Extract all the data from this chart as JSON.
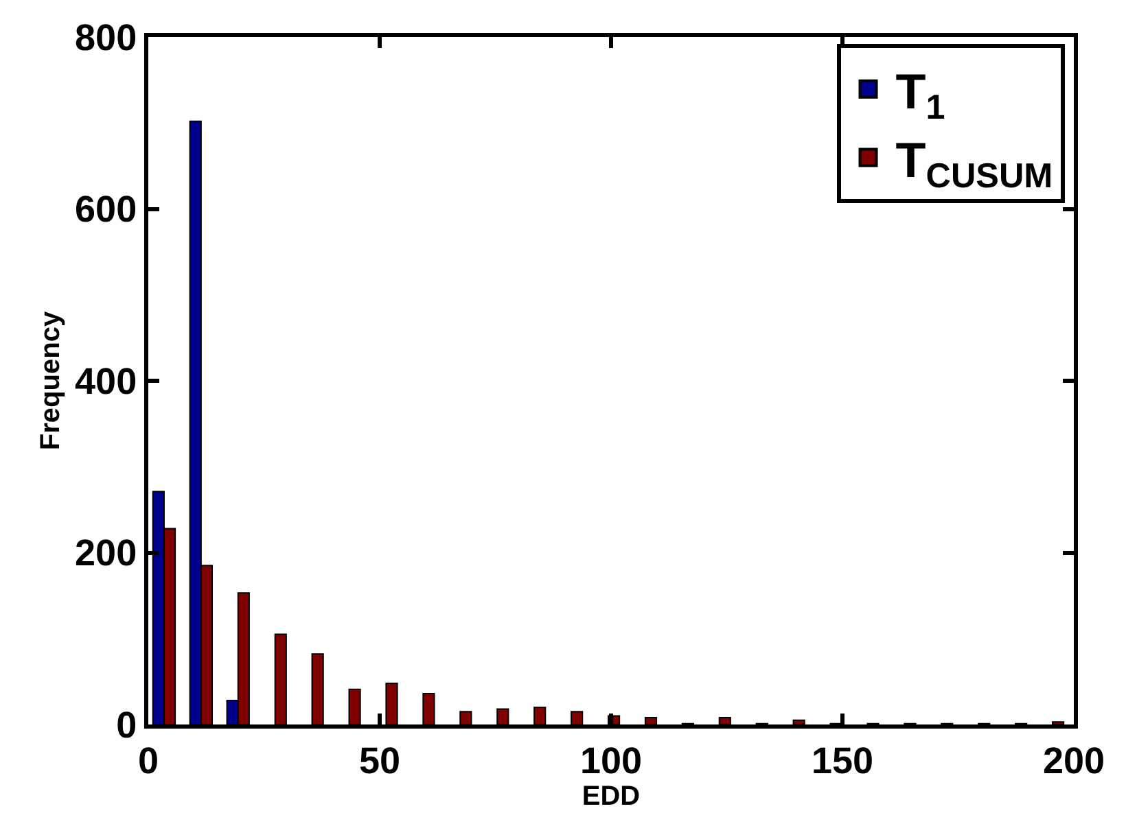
{
  "chart_data": {
    "type": "bar",
    "xlabel": "EDD",
    "ylabel": "Frequency",
    "x": [
      3.4,
      11.4,
      19.4,
      27.4,
      35.4,
      43.4,
      51.4,
      59.4,
      67.4,
      75.4,
      83.4,
      91.4,
      99.4,
      107.4,
      115.4,
      123.4,
      131.4,
      139.4,
      147.4,
      155.4,
      163.4,
      171.4,
      179.4,
      187.4,
      195.4
    ],
    "series": [
      {
        "name": "T$_{1}$",
        "color": "#00008f",
        "values": [
          271,
          702,
          28,
          0,
          0,
          0,
          0,
          0,
          0,
          0,
          0,
          0,
          0,
          0,
          0,
          0,
          0,
          0,
          0,
          0,
          0,
          0,
          0,
          0,
          0
        ]
      },
      {
        "name": "T$_{CUSUM}$",
        "color": "#800000",
        "values": [
          228,
          185,
          153,
          105,
          82,
          41,
          48,
          36,
          15,
          18,
          20,
          15,
          10,
          8,
          1,
          8,
          1,
          5,
          1,
          1,
          1,
          1,
          1,
          1,
          3
        ]
      }
    ],
    "xlim": [
      0,
      200
    ],
    "xticks": [
      0,
      50,
      100,
      150,
      200
    ],
    "ylim": [
      0,
      800
    ],
    "yticks": [
      0,
      200,
      400,
      600,
      800
    ],
    "legend": "top right"
  }
}
